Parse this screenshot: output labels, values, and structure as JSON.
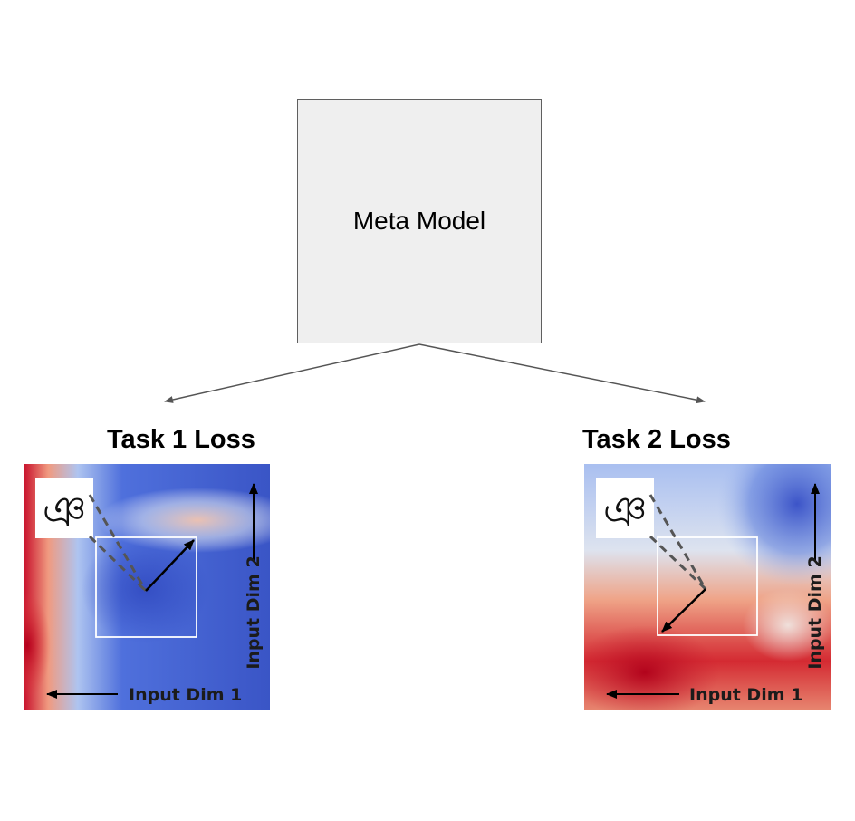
{
  "meta_model": {
    "label": "Meta Model"
  },
  "tasks": [
    {
      "title": "Task 1 Loss",
      "x_axis": "Input Dim 1",
      "y_axis": "Input Dim 2",
      "glyph": "ঞ"
    },
    {
      "title": "Task 2 Loss",
      "x_axis": "Input Dim 1",
      "y_axis": "Input Dim 2",
      "glyph": "ঞ"
    }
  ],
  "colors": {
    "low_loss": "#3b55c8",
    "high_loss": "#c0102a",
    "mid": "#f0e0d6",
    "box_fill": "#efefef",
    "box_border": "#5f5f5f"
  }
}
